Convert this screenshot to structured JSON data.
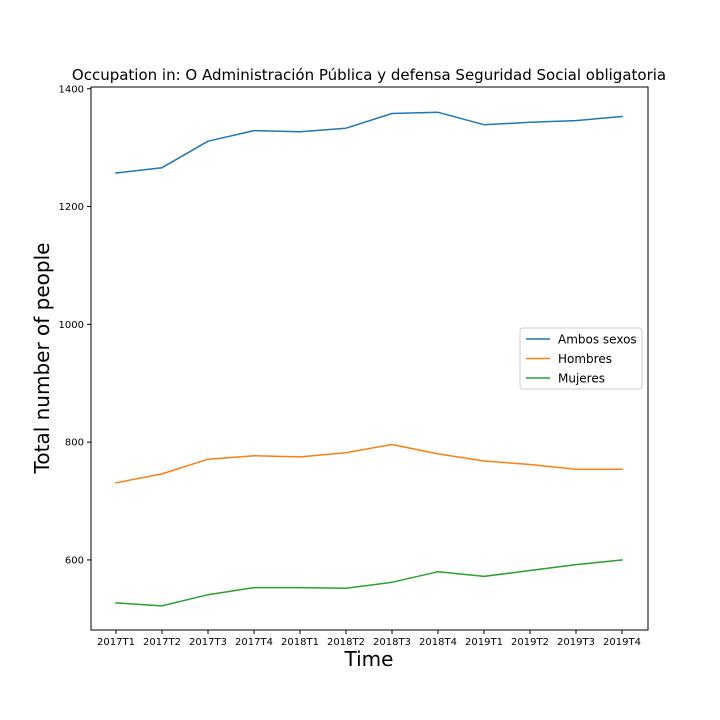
{
  "chart_data": {
    "type": "line",
    "title": "Occupation in: O Administración Pública y defensa Seguridad Social obligatoria",
    "xlabel": "Time",
    "ylabel": "Total number of people",
    "categories": [
      "2017T1",
      "2017T2",
      "2017T3",
      "2017T4",
      "2018T1",
      "2018T2",
      "2018T3",
      "2018T4",
      "2019T1",
      "2019T2",
      "2019T3",
      "2019T4"
    ],
    "yticks": [
      600,
      800,
      1000,
      1200,
      1400
    ],
    "ylim": [
      481,
      1403
    ],
    "grid": false,
    "legend_position": "center-right",
    "series": [
      {
        "name": "Ambos sexos",
        "color": "#1f77b4",
        "values": [
          1257,
          1266,
          1311,
          1329,
          1327,
          1333,
          1358,
          1360,
          1339,
          1343,
          1346,
          1353
        ]
      },
      {
        "name": "Hombres",
        "color": "#ff7f0e",
        "values": [
          731,
          746,
          771,
          777,
          775,
          782,
          796,
          780,
          768,
          762,
          754,
          754
        ]
      },
      {
        "name": "Mujeres",
        "color": "#2ca02c",
        "values": [
          527,
          522,
          541,
          553,
          553,
          552,
          562,
          580,
          572,
          582,
          592,
          600
        ]
      }
    ]
  }
}
